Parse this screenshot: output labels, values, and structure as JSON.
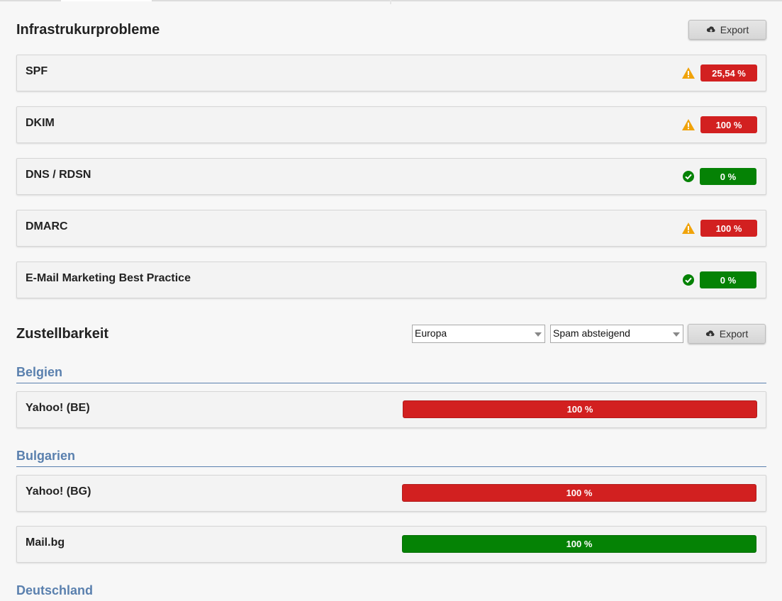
{
  "infrastructure": {
    "title": "Infrastrukurprobleme",
    "export_label": "Export",
    "items": [
      {
        "label": "SPF",
        "status": "warning",
        "value": "25,54 %",
        "color": "red"
      },
      {
        "label": "DKIM",
        "status": "warning",
        "value": "100 %",
        "color": "red"
      },
      {
        "label": "DNS / RDSN",
        "status": "ok",
        "value": "0 %",
        "color": "green"
      },
      {
        "label": "DMARC",
        "status": "warning",
        "value": "100 %",
        "color": "red"
      },
      {
        "label": "E-Mail Marketing Best Practice",
        "status": "ok",
        "value": "0 %",
        "color": "green"
      }
    ]
  },
  "deliverability": {
    "title": "Zustellbarkeit",
    "region_select": "Europa",
    "sort_select": "Spam absteigend",
    "export_label": "Export",
    "groups": [
      {
        "country": "Belgien",
        "providers": [
          {
            "label": "Yahoo! (BE)",
            "value": "100 %",
            "color": "red"
          }
        ]
      },
      {
        "country": "Bulgarien",
        "providers": [
          {
            "label": "Yahoo! (BG)",
            "value": "100 %",
            "color": "red"
          },
          {
            "label": "Mail.bg",
            "value": "100 %",
            "color": "green"
          }
        ]
      },
      {
        "country": "Deutschland",
        "providers": []
      }
    ]
  },
  "colors": {
    "red": "#d22020",
    "green": "#058205",
    "warning": "#f0a30a",
    "ok": "#058205",
    "country": "#5a80ae"
  }
}
